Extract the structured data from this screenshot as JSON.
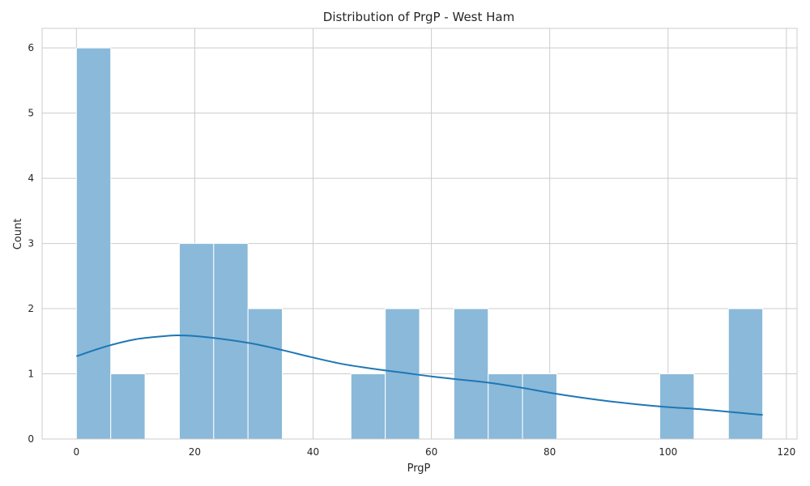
{
  "chart_data": {
    "type": "histogram",
    "title": "Distribution of PrgP - West Ham",
    "xlabel": "PrgP",
    "ylabel": "Count",
    "xlim": [
      -5.8,
      121.8
    ],
    "ylim": [
      0,
      6.3
    ],
    "x_ticks": [
      0,
      20,
      40,
      60,
      80,
      100,
      120
    ],
    "y_ticks": [
      0,
      1,
      2,
      3,
      4,
      5,
      6
    ],
    "grid": true,
    "bins": [
      {
        "start": 0.0,
        "end": 5.8,
        "count": 6
      },
      {
        "start": 5.8,
        "end": 11.6,
        "count": 1
      },
      {
        "start": 11.6,
        "end": 17.4,
        "count": 0
      },
      {
        "start": 17.4,
        "end": 23.2,
        "count": 3
      },
      {
        "start": 23.2,
        "end": 29.0,
        "count": 3
      },
      {
        "start": 29.0,
        "end": 34.8,
        "count": 2
      },
      {
        "start": 34.8,
        "end": 40.6,
        "count": 0
      },
      {
        "start": 40.6,
        "end": 46.4,
        "count": 0
      },
      {
        "start": 46.4,
        "end": 52.2,
        "count": 1
      },
      {
        "start": 52.2,
        "end": 58.0,
        "count": 2
      },
      {
        "start": 58.0,
        "end": 63.8,
        "count": 0
      },
      {
        "start": 63.8,
        "end": 69.6,
        "count": 2
      },
      {
        "start": 69.6,
        "end": 75.4,
        "count": 1
      },
      {
        "start": 75.4,
        "end": 81.2,
        "count": 1
      },
      {
        "start": 81.2,
        "end": 87.0,
        "count": 0
      },
      {
        "start": 87.0,
        "end": 92.8,
        "count": 0
      },
      {
        "start": 92.8,
        "end": 98.6,
        "count": 0
      },
      {
        "start": 98.6,
        "end": 104.4,
        "count": 1
      },
      {
        "start": 104.4,
        "end": 110.2,
        "count": 0
      },
      {
        "start": 110.2,
        "end": 116.0,
        "count": 2
      }
    ],
    "kde": {
      "x": [
        0,
        5,
        10,
        15,
        17,
        20,
        25,
        30,
        35,
        40,
        45,
        50,
        55,
        60,
        65,
        70,
        75,
        80,
        85,
        90,
        95,
        100,
        105,
        110,
        116
      ],
      "y": [
        1.27,
        1.42,
        1.53,
        1.58,
        1.59,
        1.58,
        1.53,
        1.46,
        1.36,
        1.25,
        1.15,
        1.08,
        1.02,
        0.96,
        0.91,
        0.86,
        0.79,
        0.71,
        0.64,
        0.58,
        0.53,
        0.49,
        0.46,
        0.42,
        0.37
      ]
    },
    "colors": {
      "bar_fill": "#8ab9da",
      "line": "#1f77b4"
    }
  }
}
